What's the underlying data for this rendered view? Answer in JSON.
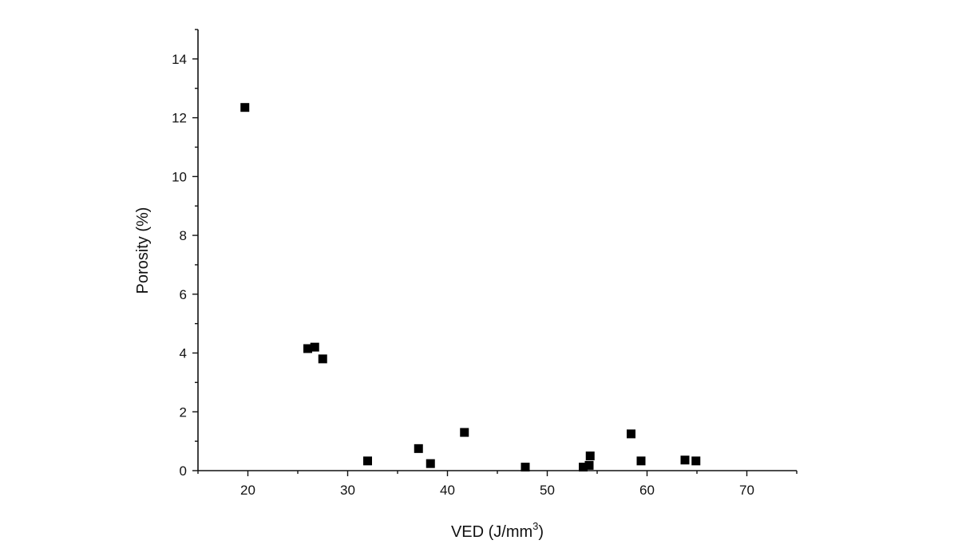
{
  "chart_data": {
    "type": "scatter",
    "title": "",
    "xlabel": "VED (J/mm",
    "xlabel_sup": "3",
    "xlabel_tail": ")",
    "ylabel": "Porosity (%)",
    "xlim": [
      15,
      75
    ],
    "ylim": [
      0,
      15
    ],
    "x_ticks": [
      20,
      30,
      40,
      50,
      60,
      70
    ],
    "y_ticks": [
      0,
      2,
      4,
      6,
      8,
      10,
      12,
      14
    ],
    "grid": false,
    "marker": "square",
    "color": "#000000",
    "series": [
      {
        "points": [
          {
            "x": 19.7,
            "y": 12.35
          },
          {
            "x": 26.0,
            "y": 4.15
          },
          {
            "x": 26.7,
            "y": 4.2
          },
          {
            "x": 27.5,
            "y": 3.8
          },
          {
            "x": 32.0,
            "y": 0.33
          },
          {
            "x": 37.1,
            "y": 0.75
          },
          {
            "x": 38.3,
            "y": 0.24
          },
          {
            "x": 41.7,
            "y": 1.3
          },
          {
            "x": 47.8,
            "y": 0.12
          },
          {
            "x": 53.6,
            "y": 0.12
          },
          {
            "x": 54.2,
            "y": 0.18
          },
          {
            "x": 54.3,
            "y": 0.5
          },
          {
            "x": 58.4,
            "y": 1.25
          },
          {
            "x": 59.4,
            "y": 0.33
          },
          {
            "x": 63.8,
            "y": 0.36
          },
          {
            "x": 64.9,
            "y": 0.33
          }
        ]
      }
    ]
  }
}
